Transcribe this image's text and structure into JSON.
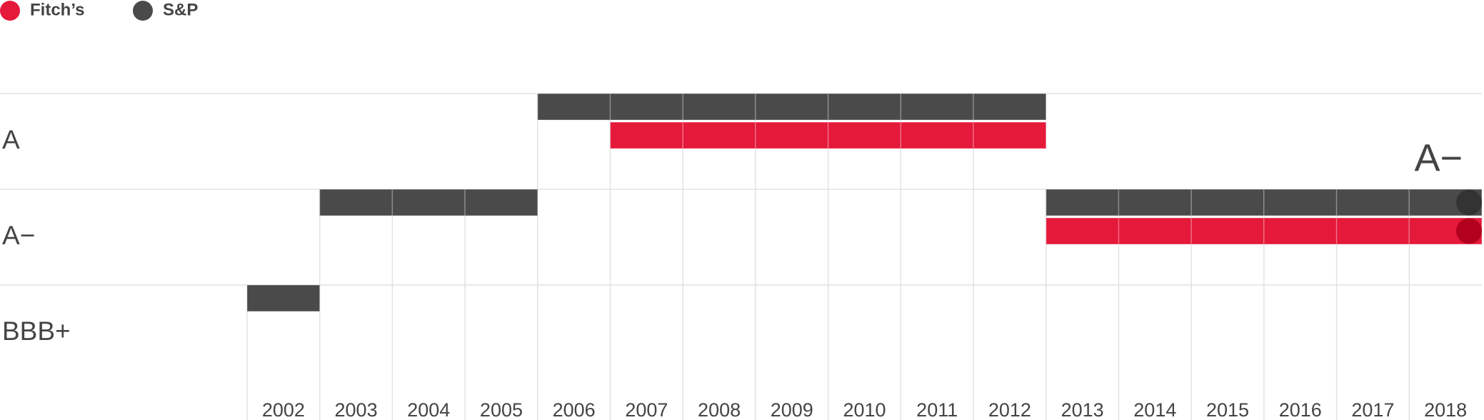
{
  "chart_data": {
    "type": "rating-timeline",
    "categories": [
      "2002",
      "2003",
      "2004",
      "2005",
      "2006",
      "2007",
      "2008",
      "2009",
      "2010",
      "2011",
      "2012",
      "2013",
      "2014",
      "2015",
      "2016",
      "2017",
      "2018"
    ],
    "levels": [
      "A",
      "A−",
      "BBB+"
    ],
    "series": [
      {
        "name": "Fitch’s",
        "color": "#e5193a",
        "values": [
          null,
          null,
          null,
          null,
          null,
          "A",
          "A",
          "A",
          "A",
          "A",
          "A",
          "A−",
          "A−",
          "A−",
          "A−",
          "A−",
          "A−"
        ]
      },
      {
        "name": "S&P",
        "color": "#4a4a4a",
        "values": [
          "BBB+",
          "A−",
          "A−",
          "A−",
          "A",
          "A",
          "A",
          "A",
          "A",
          "A",
          "A",
          "A−",
          "A−",
          "A−",
          "A−",
          "A−",
          "A−"
        ]
      }
    ],
    "grid": true
  }
}
